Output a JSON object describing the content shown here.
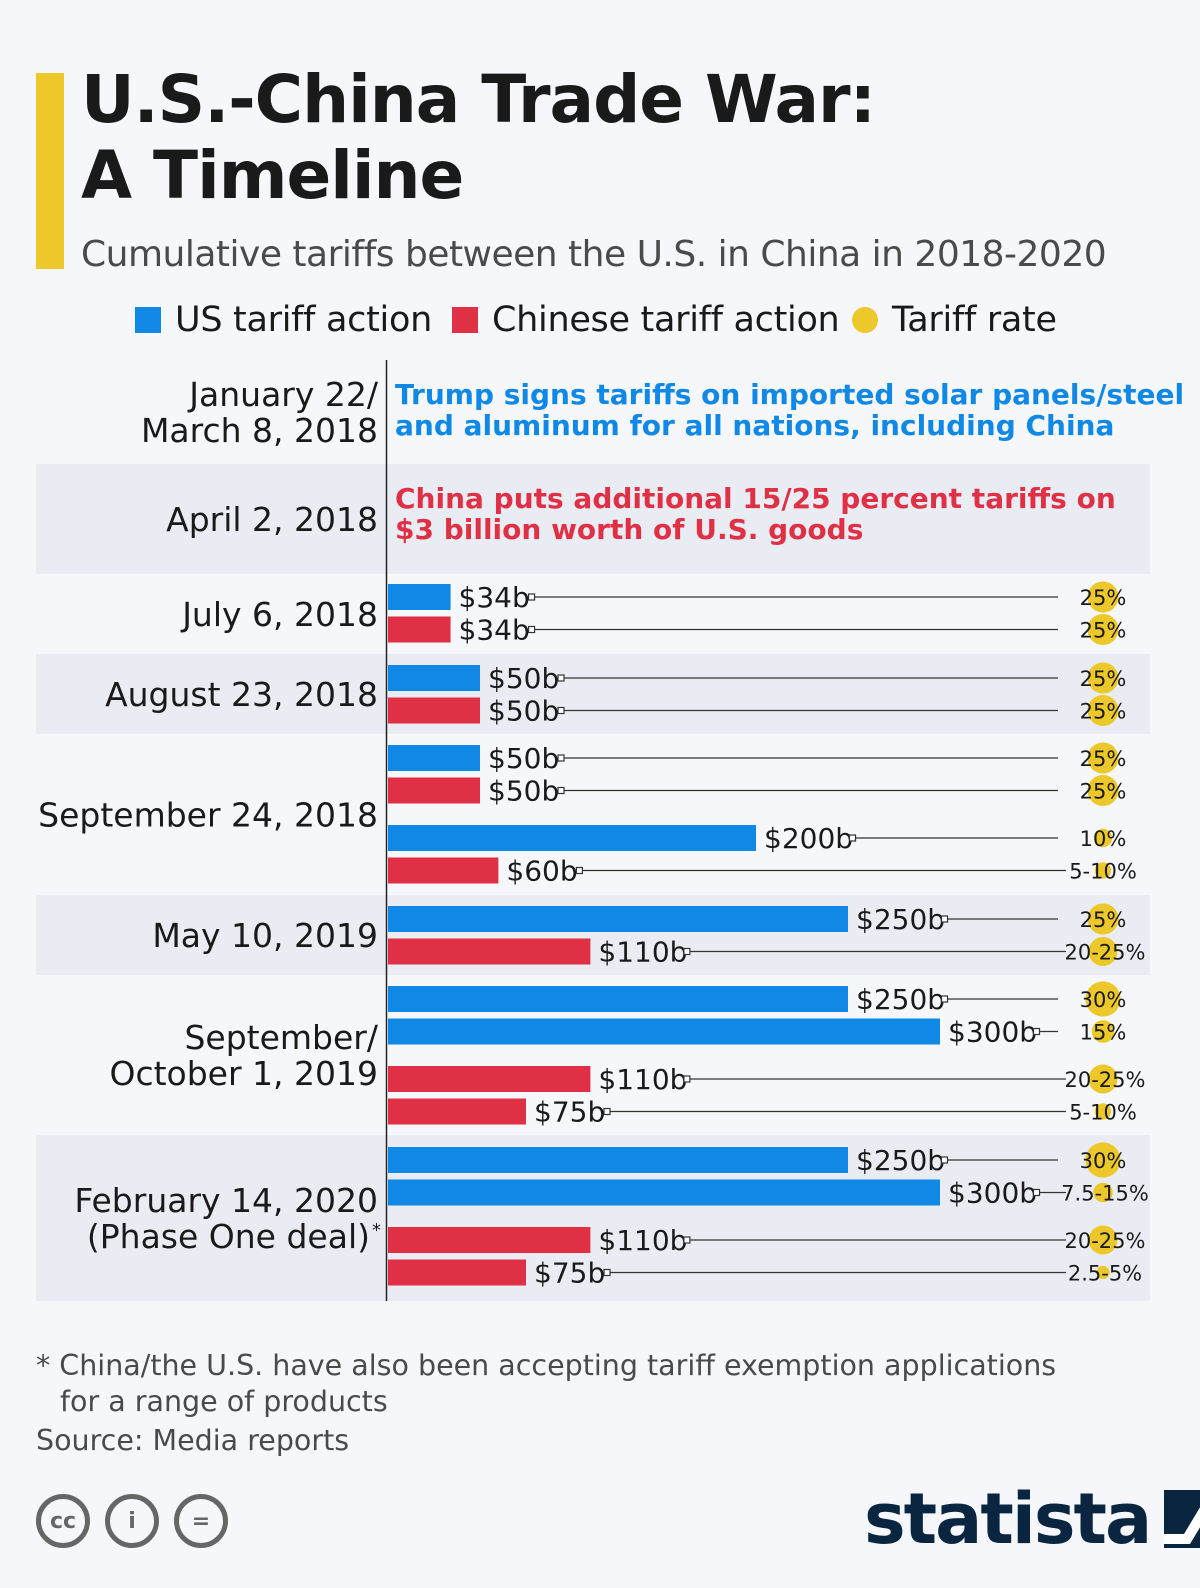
{
  "header": {
    "title_line1": "U.S.-China Trade War:",
    "title_line2": "A Timeline",
    "subtitle": "Cumulative tariffs between the U.S. in China in 2018-2020"
  },
  "legend": {
    "us": "US tariff action",
    "china": "Chinese tariff action",
    "rate": "Tariff rate"
  },
  "colors": {
    "us": "#0f88e6",
    "china": "#e03046",
    "rate": "#ecc82b",
    "band": "#e9edf3",
    "connector": "#333333",
    "accent": "#ecc82b",
    "brand": "#0a2540"
  },
  "chart_data": {
    "type": "bar",
    "title": "U.S.-China Trade War: A Timeline",
    "subtitle": "Cumulative tariffs between the U.S. in China in 2018-2020",
    "value_unit": "billion USD",
    "xlim": [
      0,
      300
    ],
    "groups": [
      {
        "date_lines": [
          "January 22/",
          "March 8, 2018"
        ],
        "event_kind": "us",
        "event_lines": [
          "Trump signs tariffs on imported solar panels/steel",
          "and aluminum for all nations, including China"
        ],
        "bars": []
      },
      {
        "date_lines": [
          "April 2, 2018"
        ],
        "event_kind": "china",
        "event_lines": [
          "China puts additional 15/25 percent tariffs on",
          "$3 billion worth of U.S. goods"
        ],
        "bars": []
      },
      {
        "date_lines": [
          "July 6, 2018"
        ],
        "bars": [
          {
            "series": "us",
            "value": 34,
            "label": "$34b",
            "rate": "25%",
            "rate_value": 25
          },
          {
            "series": "china",
            "value": 34,
            "label": "$34b",
            "rate": "25%",
            "rate_value": 25
          }
        ]
      },
      {
        "date_lines": [
          "August 23, 2018"
        ],
        "bars": [
          {
            "series": "us",
            "value": 50,
            "label": "$50b",
            "rate": "25%",
            "rate_value": 25
          },
          {
            "series": "china",
            "value": 50,
            "label": "$50b",
            "rate": "25%",
            "rate_value": 25
          }
        ]
      },
      {
        "date_lines": [
          "September 24, 2018"
        ],
        "bars": [
          {
            "series": "us",
            "value": 50,
            "label": "$50b",
            "rate": "25%",
            "rate_value": 25
          },
          {
            "series": "china",
            "value": 50,
            "label": "$50b",
            "rate": "25%",
            "rate_value": 25
          },
          {
            "series": "us",
            "value": 200,
            "label": "$200b",
            "rate": "10%",
            "rate_value": 10
          },
          {
            "series": "china",
            "value": 60,
            "label": "$60b",
            "rate": "5-10%",
            "rate_value": 7.5
          }
        ]
      },
      {
        "date_lines": [
          "May 10, 2019"
        ],
        "bars": [
          {
            "series": "us",
            "value": 250,
            "label": "$250b",
            "rate": "25%",
            "rate_value": 25
          },
          {
            "series": "china",
            "value": 110,
            "label": "$110b",
            "rate": "20-25%",
            "rate_value": 22.5
          }
        ]
      },
      {
        "date_lines": [
          "September/",
          "October 1, 2019"
        ],
        "bars": [
          {
            "series": "us",
            "value": 250,
            "label": "$250b",
            "rate": "30%",
            "rate_value": 30
          },
          {
            "series": "us",
            "value": 300,
            "label": "$300b",
            "rate": "15%",
            "rate_value": 15
          },
          {
            "series": "china",
            "value": 110,
            "label": "$110b",
            "rate": "20-25%",
            "rate_value": 22.5
          },
          {
            "series": "china",
            "value": 75,
            "label": "$75b",
            "rate": "5-10%",
            "rate_value": 7.5
          }
        ]
      },
      {
        "date_lines": [
          "February 14, 2020",
          "(Phase One deal)"
        ],
        "date_sup": "*",
        "bars": [
          {
            "series": "us",
            "value": 250,
            "label": "$250b",
            "rate": "30%",
            "rate_value": 30
          },
          {
            "series": "us",
            "value": 300,
            "label": "$300b",
            "rate": "7.5-15%",
            "rate_value": 11.25
          },
          {
            "series": "china",
            "value": 110,
            "label": "$110b",
            "rate": "20-25%",
            "rate_value": 22.5
          },
          {
            "series": "china",
            "value": 75,
            "label": "$75b",
            "rate": "2.5-5%",
            "rate_value": 3.75
          }
        ]
      }
    ]
  },
  "footer": {
    "footnote_line1": "* China/the U.S. have also been accepting tariff exemption applications",
    "footnote_line2": "for a range of products",
    "source": "Source: Media reports",
    "cc_labels": [
      "cc",
      "i",
      "="
    ],
    "brand": "statista"
  }
}
